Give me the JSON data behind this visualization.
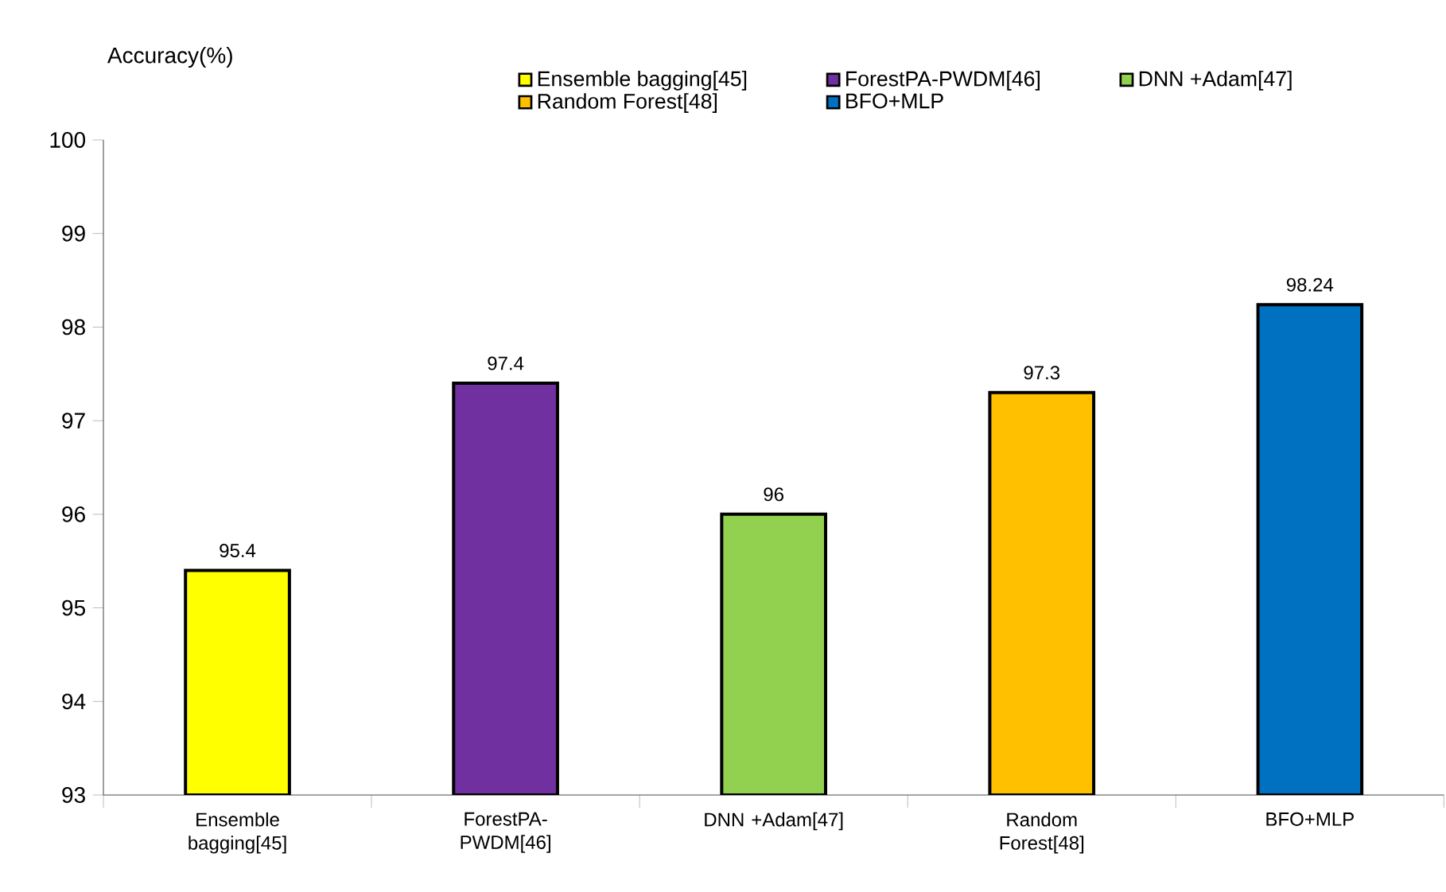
{
  "chart_data": {
    "type": "bar",
    "ylabel": "Accuracy(%)",
    "categories": [
      "Ensemble bagging[45]",
      "ForestPA-PWDM[46]",
      "DNN +Adam[47]",
      "Random Forest[48]",
      "BFO+MLP"
    ],
    "series": [
      {
        "name": "Ensemble bagging[45]",
        "color": "#ffff00",
        "values": [
          95.4,
          null,
          null,
          null,
          null
        ]
      },
      {
        "name": "ForestPA-PWDM[46]",
        "color": "#7030a0",
        "values": [
          null,
          97.4,
          null,
          null,
          null
        ]
      },
      {
        "name": "DNN +Adam[47]",
        "color": "#92d050",
        "values": [
          null,
          null,
          96,
          null,
          null
        ]
      },
      {
        "name": "Random Forest[48]",
        "color": "#ffc000",
        "values": [
          null,
          null,
          null,
          97.3,
          null
        ]
      },
      {
        "name": "BFO+MLP",
        "color": "#0070c0",
        "values": [
          null,
          null,
          null,
          null,
          98.24
        ]
      }
    ],
    "ylim": [
      93,
      100
    ],
    "yticks": [
      93,
      94,
      95,
      96,
      97,
      98,
      99,
      100
    ],
    "data_labels": true,
    "legend": "top",
    "grid": false
  }
}
